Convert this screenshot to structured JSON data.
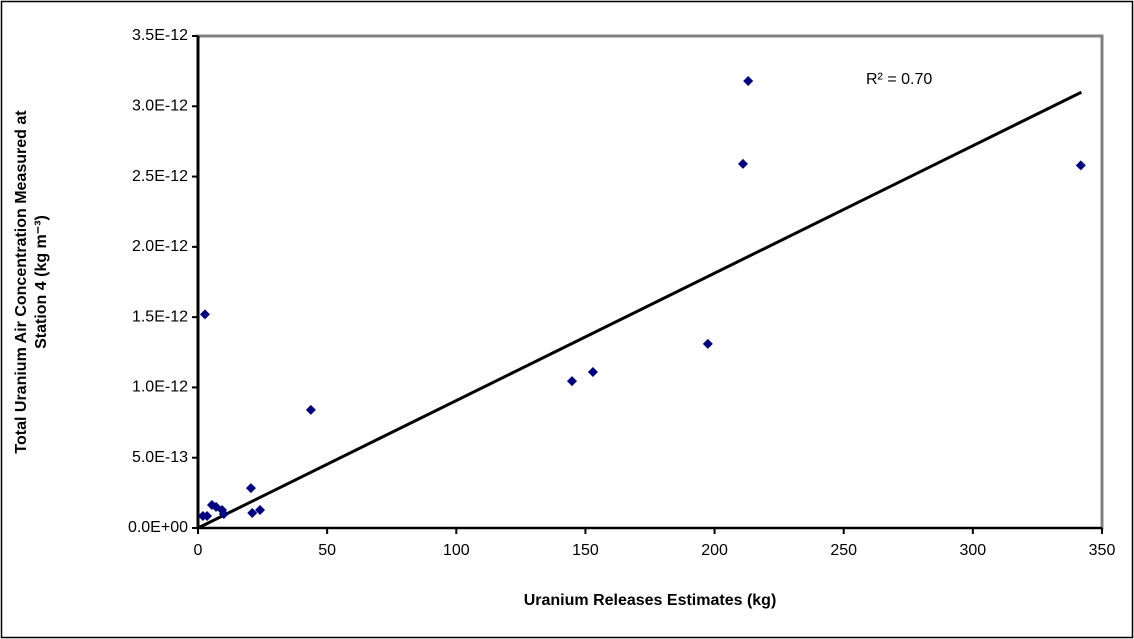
{
  "chart_data": {
    "type": "scatter",
    "x_label": "Uranium Releases Estimates (kg)",
    "y_label": [
      "Total Uranium Air Concentration Measured at",
      "Station 4 (kg m⁻³)"
    ],
    "annotation": "R² = 0.70",
    "series": [
      {
        "name": "Station 4",
        "color": "#000080",
        "x": [
          1.9,
          3.5,
          5.4,
          7.0,
          9.3,
          10,
          20.5,
          21,
          24,
          2.7,
          43.7,
          144.8,
          152.9,
          197.4,
          211,
          213,
          341.8
        ],
        "values": [
          8.5e-14,
          8.5e-14,
          1.64e-13,
          1.5e-13,
          1.28e-13,
          1e-13,
          2.84e-13,
          1.07e-13,
          1.28e-13,
          1.52e-12,
          8.4e-13,
          1.045e-12,
          1.11e-12,
          1.31e-12,
          2.59e-12,
          3.18e-12,
          2.58e-12
        ]
      }
    ],
    "trendline": {
      "color": "#000000",
      "x": [
        0,
        342
      ],
      "values": [
        0,
        3.1e-12
      ]
    },
    "xlim": [
      0,
      350
    ],
    "xticks": [
      0,
      50,
      100,
      150,
      200,
      250,
      300,
      350
    ],
    "ylim": [
      0,
      3.5e-12
    ],
    "yticks": [
      {
        "value": 0,
        "label": "0.0E+00"
      },
      {
        "value": 5e-13,
        "label": "5.0E-13"
      },
      {
        "value": 1e-12,
        "label": "1.0E-12"
      },
      {
        "value": 1.5e-12,
        "label": "1.5E-12"
      },
      {
        "value": 2e-12,
        "label": "2.0E-12"
      },
      {
        "value": 2.5e-12,
        "label": "2.5E-12"
      },
      {
        "value": 3e-12,
        "label": "3.0E-12"
      },
      {
        "value": 3.5e-12,
        "label": "3.5E-12"
      }
    ]
  }
}
